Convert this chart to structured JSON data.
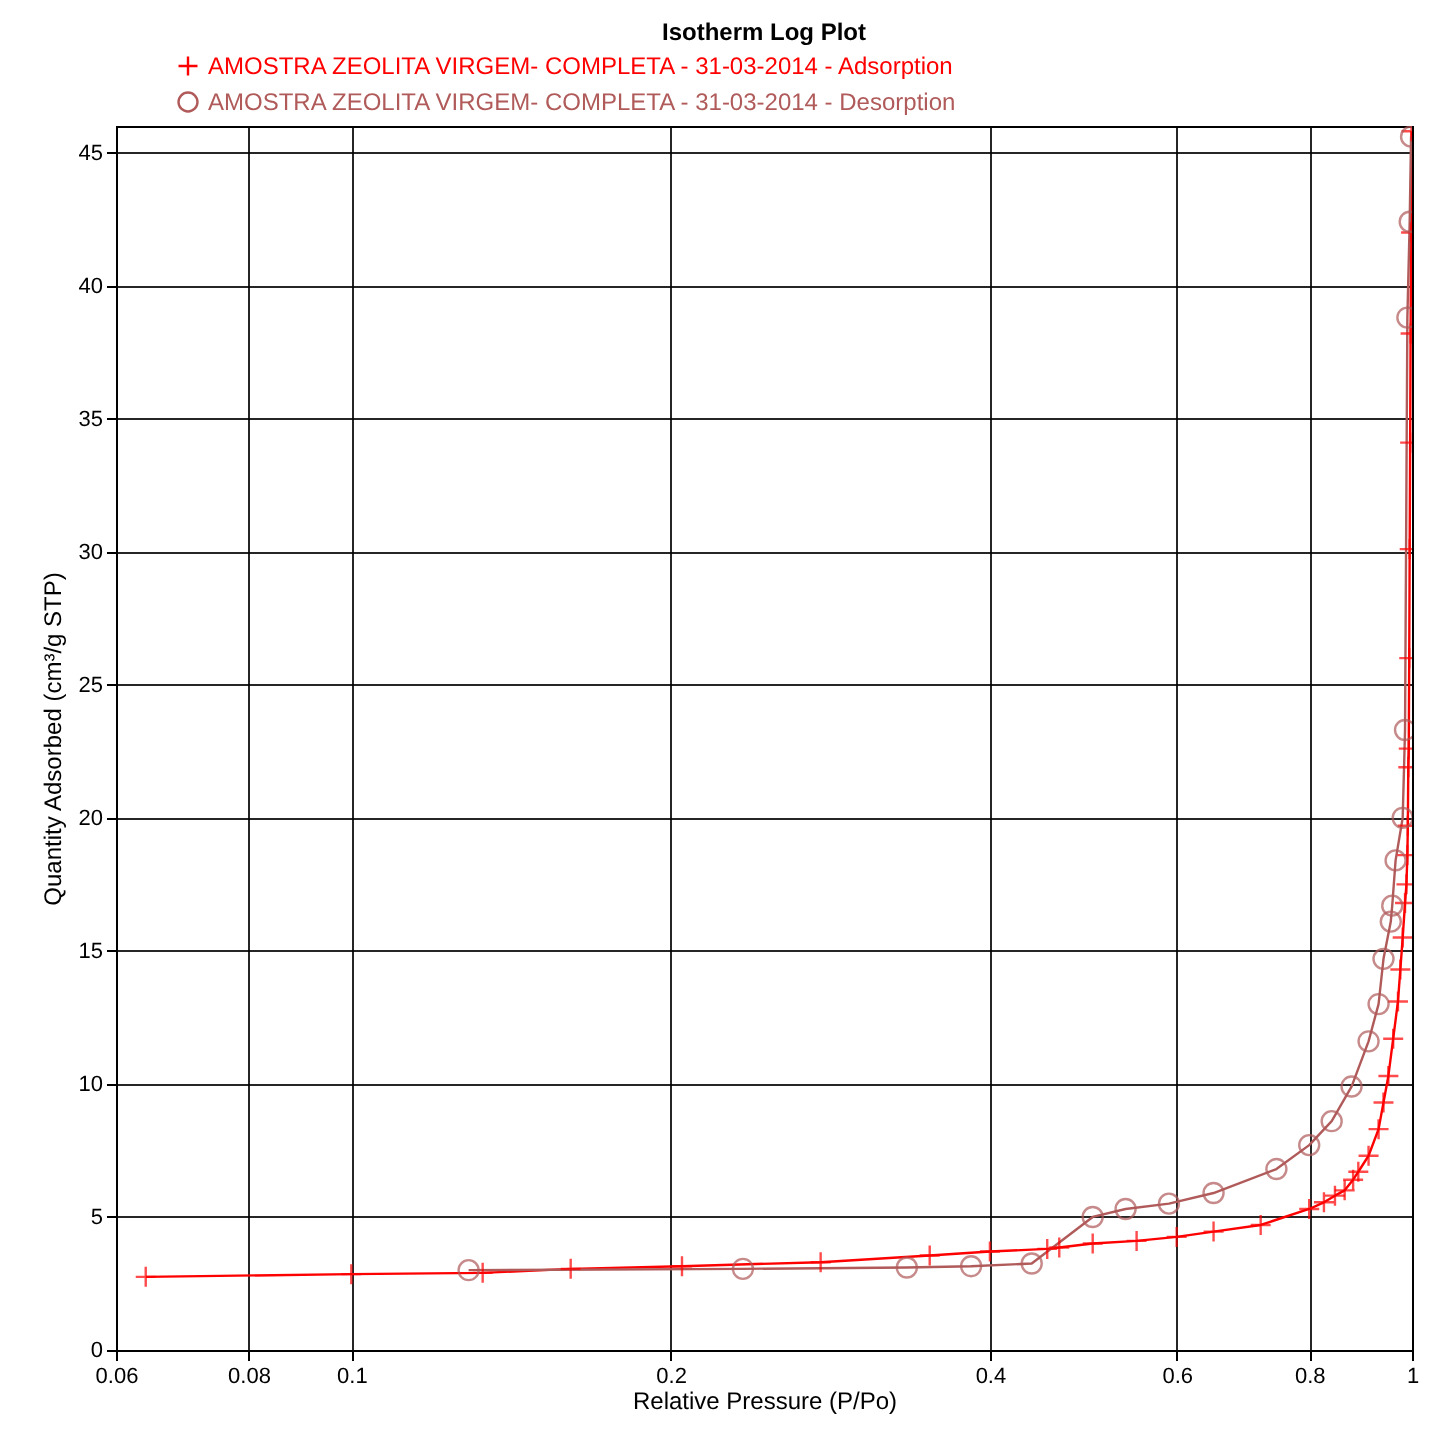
{
  "chart_data": {
    "type": "line",
    "title": "Isotherm Log Plot",
    "xlabel": "Relative Pressure (P/Po)",
    "ylabel": "Quantity Adsorbed (cm³/g STP)",
    "log": "x",
    "xlim": [
      0.06,
      1
    ],
    "xticks": [
      0.06,
      0.08,
      0.1,
      0.2,
      0.4,
      0.6,
      0.8,
      1
    ],
    "ylim": [
      0,
      46
    ],
    "yticks": [
      0,
      5,
      10,
      15,
      20,
      25,
      30,
      35,
      40,
      45
    ],
    "grid": true,
    "legend": "top left",
    "line_style": "solid",
    "series": [
      {
        "name": "AMOSTRA ZEOLITA VIRGEM- COMPLETA - 31-03-2014  - Adsorption",
        "color": "#ff0000",
        "marker": "cross",
        "x": [
          0.064,
          0.1,
          0.133,
          0.161,
          0.205,
          0.277,
          0.351,
          0.4,
          0.453,
          0.465,
          0.5,
          0.55,
          0.6,
          0.65,
          0.72,
          0.8,
          0.826,
          0.846,
          0.864,
          0.88,
          0.89,
          0.91,
          0.93,
          0.94,
          0.95,
          0.96,
          0.97,
          0.975,
          0.98,
          0.985,
          0.988,
          0.99,
          0.991,
          0.992,
          0.993,
          0.994,
          0.995,
          0.996,
          0.997,
          0.998,
          0.999
        ],
        "values": [
          2.75,
          2.85,
          2.9,
          3.05,
          3.15,
          3.3,
          3.55,
          3.7,
          3.8,
          3.85,
          4.0,
          4.1,
          4.25,
          4.45,
          4.7,
          5.3,
          5.55,
          5.8,
          6.0,
          6.4,
          6.7,
          7.3,
          8.3,
          9.3,
          10.3,
          11.7,
          13.1,
          14.3,
          15.5,
          16.8,
          17.5,
          18.6,
          19.7,
          21.9,
          22.6,
          26.0,
          30.1,
          34.1,
          38.2,
          42.0,
          45.8
        ]
      },
      {
        "name": "AMOSTRA ZEOLITA VIRGEM- COMPLETA - 31-03-2014  - Desorption",
        "color": "#b05a5a",
        "marker": "circle",
        "x": [
          0.129,
          0.234,
          0.334,
          0.384,
          0.438,
          0.5,
          0.537,
          0.59,
          0.65,
          0.745,
          0.8,
          0.84,
          0.877,
          0.91,
          0.93,
          0.94,
          0.955,
          0.958,
          0.965,
          0.98,
          0.985,
          0.99,
          0.995,
          0.998
        ],
        "values": [
          3.0,
          3.05,
          3.1,
          3.15,
          3.25,
          5.0,
          5.3,
          5.5,
          5.9,
          6.8,
          7.7,
          8.6,
          9.9,
          11.6,
          13.0,
          14.7,
          16.1,
          16.7,
          18.4,
          20.0,
          23.3,
          38.8,
          42.4,
          45.6
        ]
      }
    ]
  }
}
